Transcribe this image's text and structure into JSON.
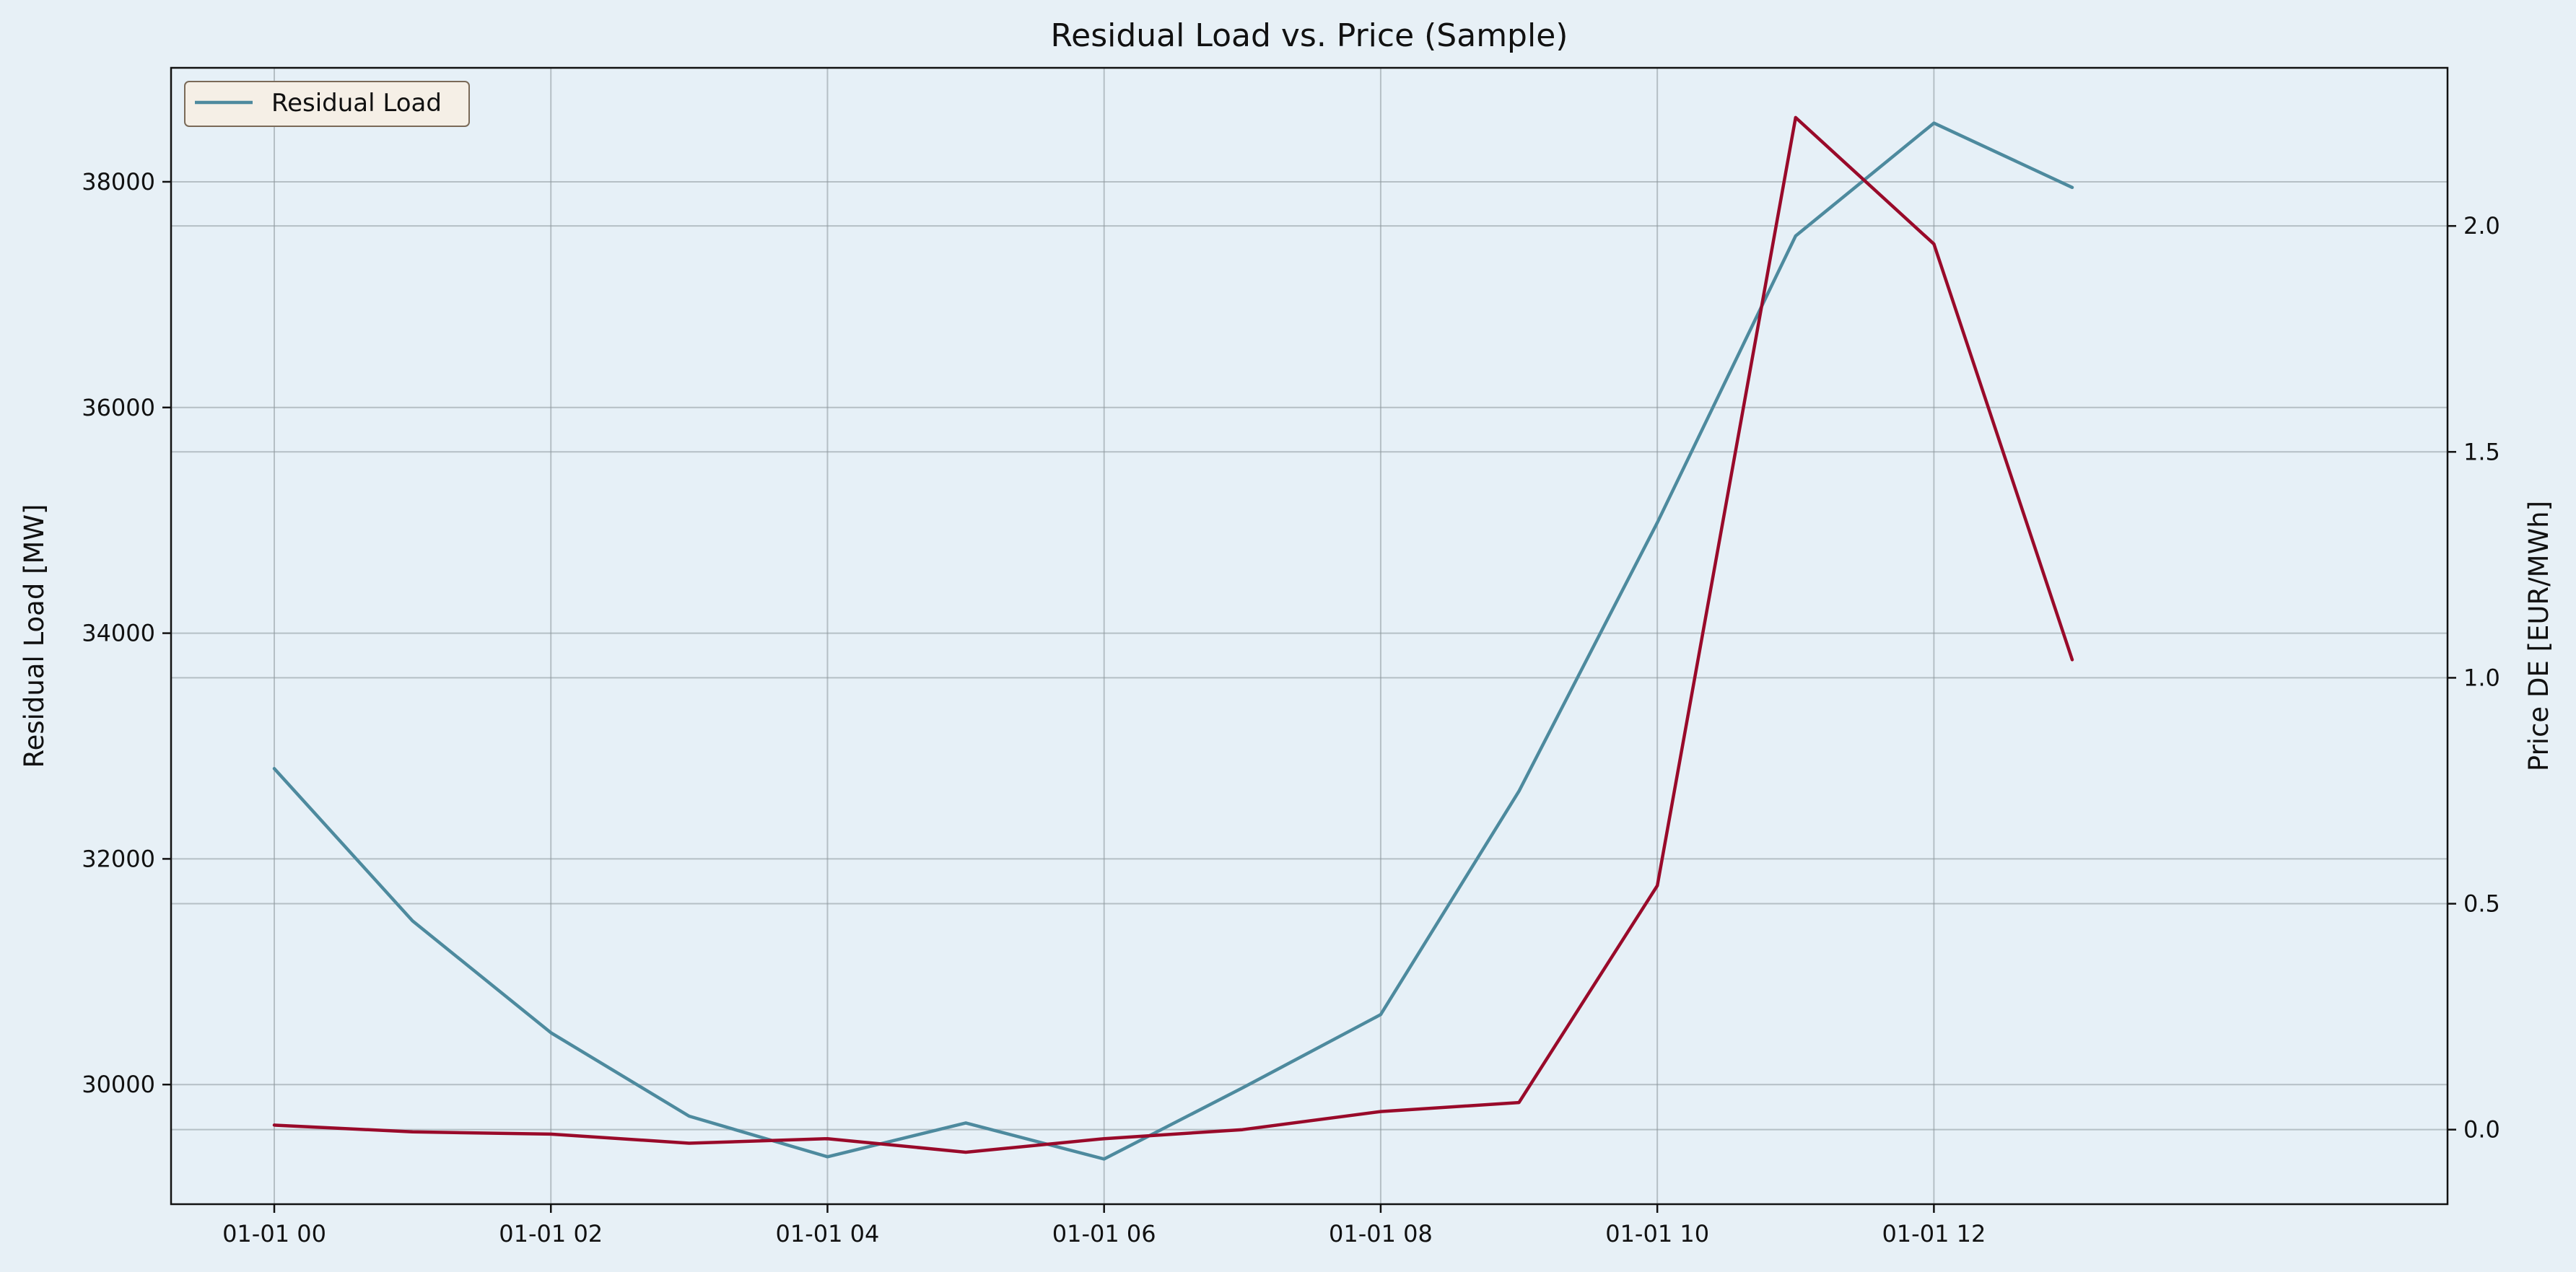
{
  "chart_data": {
    "type": "line",
    "title": "Residual Load vs. Price (Sample)",
    "x": [
      "01-01 00",
      "01-01 01",
      "01-01 02",
      "01-01 03",
      "01-01 04",
      "01-01 05",
      "01-01 06",
      "01-01 07",
      "01-01 08",
      "01-01 09",
      "01-01 10",
      "01-01 11",
      "01-01 12",
      "01-01 13"
    ],
    "x_ticks": [
      "01-01 00",
      "01-01 02",
      "01-01 04",
      "01-01 06",
      "01-01 08",
      "01-01 10",
      "01-01 12"
    ],
    "series": [
      {
        "name": "Residual Load",
        "axis": "left",
        "color": "#4d8a9e",
        "values": [
          32800,
          31450,
          30460,
          29720,
          29360,
          29660,
          29340,
          29970,
          30620,
          32600,
          34980,
          37520,
          38520,
          37950
        ]
      },
      {
        "axis": "right",
        "color": "#990a2a",
        "values": [
          0.01,
          -0.005,
          -0.01,
          -0.03,
          -0.02,
          -0.05,
          -0.02,
          0.0,
          0.04,
          0.06,
          0.54,
          2.24,
          1.96,
          1.04
        ]
      }
    ],
    "ylabel_left": "Residual Load [MW]",
    "ylabel_right": "Price DE [EUR/MWh]",
    "ylim_left": [
      28940,
      39010
    ],
    "ylim_right": [
      -0.165,
      2.35
    ],
    "yticks_left": [
      30000,
      32000,
      34000,
      36000,
      38000
    ],
    "yticks_right": [
      "0.0",
      "0.5",
      "1.0",
      "1.5",
      "2.0"
    ],
    "yticks_right_values": [
      0.0,
      0.5,
      1.0,
      1.5,
      2.0
    ],
    "grid": true,
    "legend_position": "top-left",
    "colors": {
      "background": "#e7f0f6",
      "plot_background": "#e6f0f7",
      "legend_background": "#f5efe6",
      "legend_border": "#7a6a58"
    }
  }
}
